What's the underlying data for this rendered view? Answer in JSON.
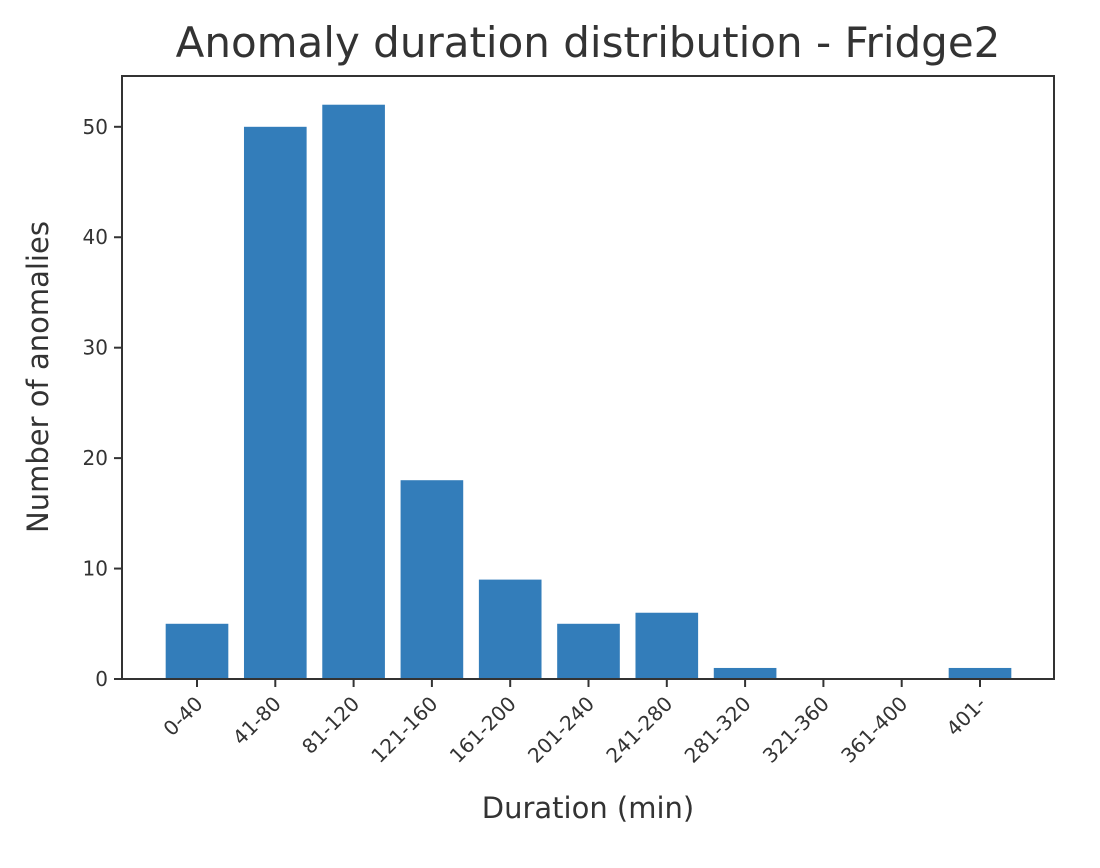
{
  "chart_data": {
    "type": "bar",
    "title": "Anomaly duration distribution - Fridge2",
    "xlabel": "Duration (min)",
    "ylabel": "Number of anomalies",
    "categories": [
      "0-40",
      "41-80",
      "81-120",
      "121-160",
      "161-200",
      "201-240",
      "241-280",
      "281-320",
      "321-360",
      "361-400",
      "401-"
    ],
    "values": [
      5,
      50,
      52,
      18,
      9,
      5,
      6,
      1,
      0,
      0,
      1
    ],
    "ylim": [
      0,
      54.6
    ],
    "yticks": [
      0,
      10,
      20,
      30,
      40,
      50
    ],
    "grid": false,
    "legend": "none",
    "bar_color": "#337dba",
    "axis_color": "#333333"
  }
}
